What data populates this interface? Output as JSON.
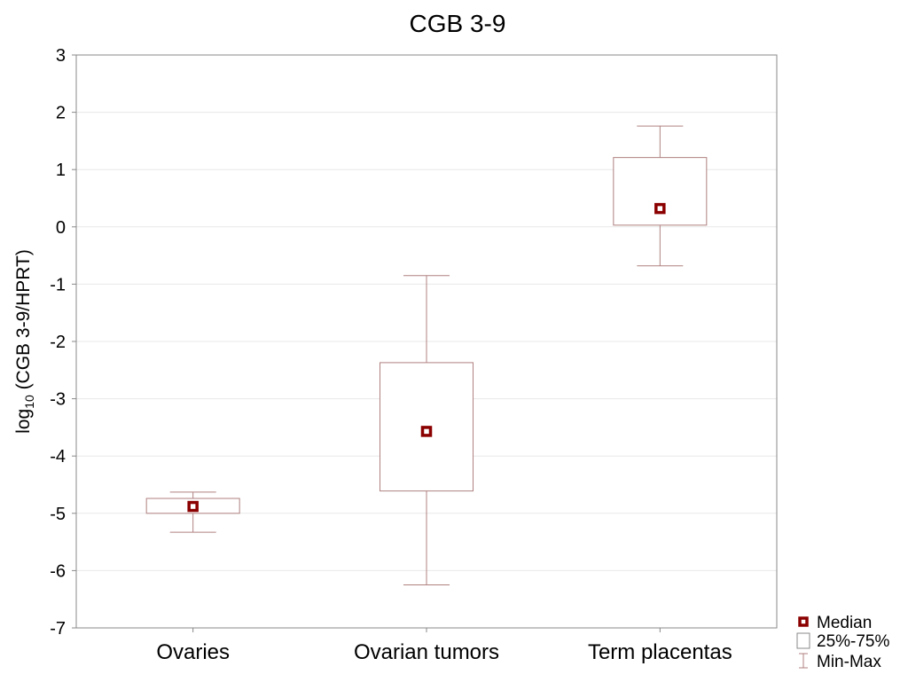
{
  "chart_data": {
    "type": "box",
    "title": "CGB 3-9",
    "ylabel_main": "log",
    "ylabel_sub": "10",
    "ylabel_rest": " (CGB 3-9/HPRT)",
    "xlabel": "",
    "ylim": [
      -7,
      3
    ],
    "yticks": [
      3,
      2,
      1,
      0,
      -1,
      -2,
      -3,
      -4,
      -5,
      -6,
      -7
    ],
    "grid": true,
    "legend_position": "bottom-right",
    "categories": [
      "Ovaries",
      "Ovarian tumors",
      "Term placentas"
    ],
    "boxes": [
      {
        "category": "Ovaries",
        "min": -5.33,
        "q1": -5.0,
        "median": -4.88,
        "q3": -4.74,
        "max": -4.63
      },
      {
        "category": "Ovarian tumors",
        "min": -6.25,
        "q1": -4.61,
        "median": -3.57,
        "q3": -2.37,
        "max": -0.85
      },
      {
        "category": "Term placentas",
        "min": -0.68,
        "q1": 0.03,
        "median": 0.32,
        "q3": 1.21,
        "max": 1.76
      }
    ],
    "legend": [
      "Median",
      "25%-75%",
      "Min-Max"
    ],
    "colors": {
      "box": "#b08080",
      "median": "#8b0000",
      "grid": "#e8e8e8",
      "axis": "#888888"
    }
  }
}
